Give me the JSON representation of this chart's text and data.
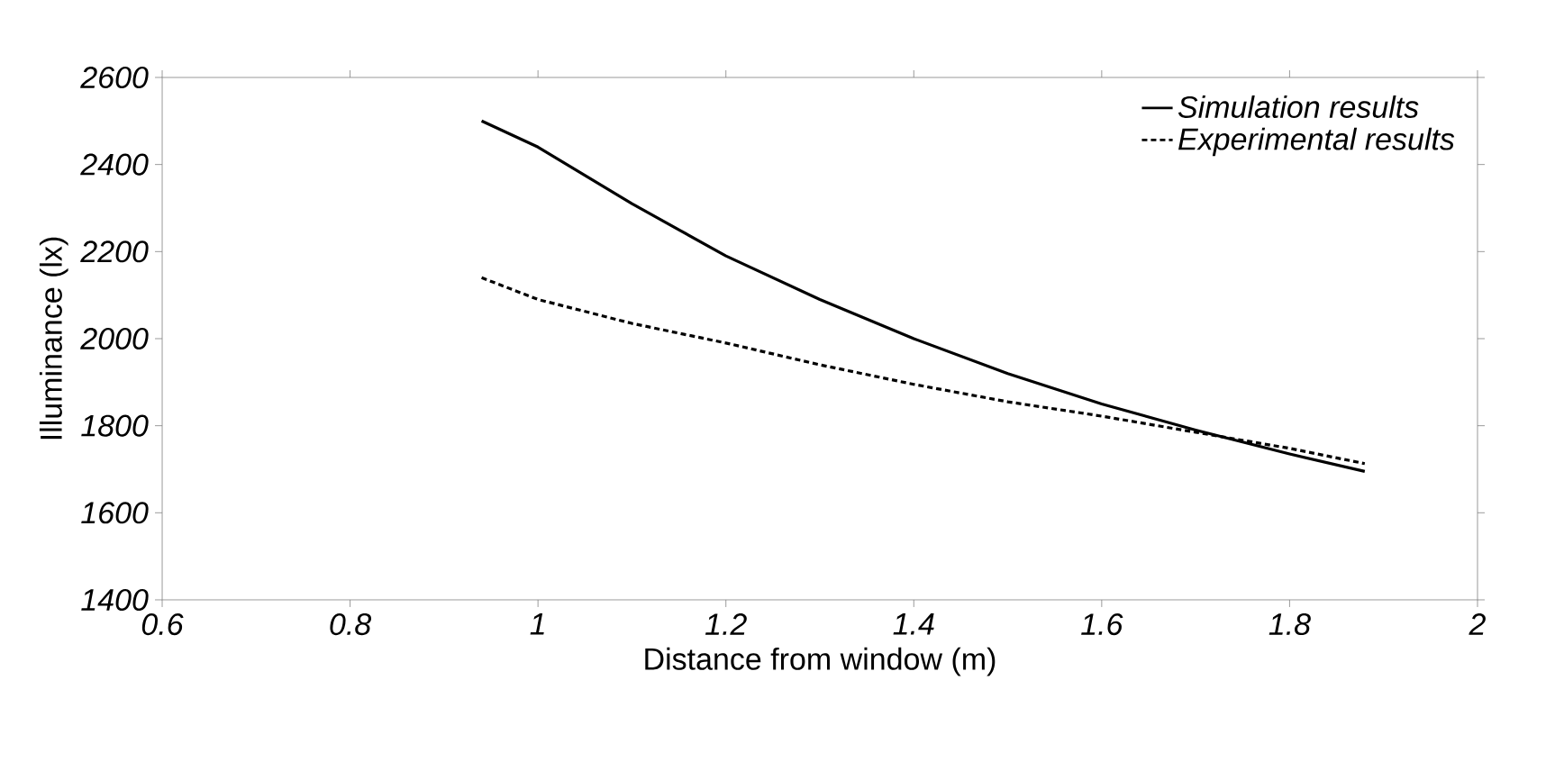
{
  "chart_data": {
    "type": "line",
    "xlabel": "Distance from window (m)",
    "ylabel": "Illuminance (lx)",
    "xlim": [
      0.6,
      2
    ],
    "xticks": [
      0.6,
      0.8,
      1,
      1.2,
      1.4,
      1.6,
      1.8,
      2
    ],
    "ylim": [
      1400,
      2600
    ],
    "yticks": [
      1400,
      1600,
      1800,
      2000,
      2200,
      2400,
      2600
    ],
    "grid": false,
    "legend": "top right",
    "marker": "none",
    "series": [
      {
        "name": "Simulation results",
        "color": "#000000",
        "line_style": "solid",
        "x": [
          0.94,
          1.0,
          1.1,
          1.2,
          1.3,
          1.4,
          1.5,
          1.6,
          1.7,
          1.8,
          1.88
        ],
        "values": [
          2500,
          2440,
          2310,
          2190,
          2090,
          2000,
          1920,
          1850,
          1790,
          1735,
          1695
        ]
      },
      {
        "name": "Experimental results",
        "color": "#000000",
        "line_style": "dotted",
        "x": [
          0.94,
          1.0,
          1.1,
          1.2,
          1.3,
          1.4,
          1.5,
          1.6,
          1.7,
          1.8,
          1.88
        ],
        "values": [
          2140,
          2090,
          2035,
          1990,
          1940,
          1895,
          1855,
          1822,
          1785,
          1748,
          1713
        ]
      }
    ]
  }
}
